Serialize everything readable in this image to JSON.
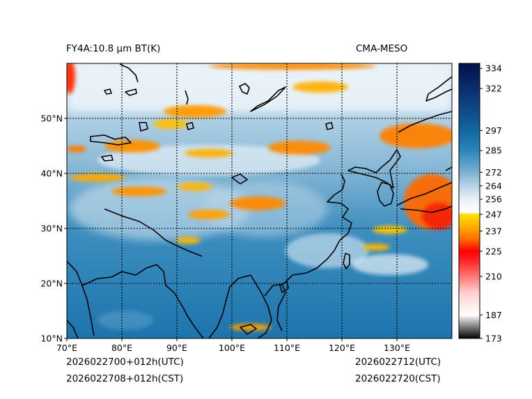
{
  "header": {
    "left_title": "FY4A:10.8 μm BT(K)",
    "right_title": "CMA-MESO"
  },
  "footer": {
    "init_utc": "2026022700+012h(UTC)",
    "init_cst": "2026022708+012h(CST)",
    "valid_utc": "2026022712(UTC)",
    "valid_cst": "2026022720(CST)"
  },
  "map": {
    "lon_range": [
      70,
      140
    ],
    "lat_range": [
      10,
      60
    ],
    "lon_ticks": [
      {
        "value": 70,
        "label": "70°E"
      },
      {
        "value": 80,
        "label": "80°E"
      },
      {
        "value": 90,
        "label": "90°E"
      },
      {
        "value": 100,
        "label": "100°E"
      },
      {
        "value": 110,
        "label": "110°E"
      },
      {
        "value": 120,
        "label": "120°E"
      },
      {
        "value": 130,
        "label": "130°E"
      }
    ],
    "lat_ticks": [
      {
        "value": 10,
        "label": "10°N"
      },
      {
        "value": 20,
        "label": "20°N"
      },
      {
        "value": 30,
        "label": "30°N"
      },
      {
        "value": 40,
        "label": "40°N"
      },
      {
        "value": 50,
        "label": "50°N"
      }
    ]
  },
  "colorbar": {
    "range": [
      173,
      337
    ],
    "ticks": [
      {
        "value": 173,
        "label": "173"
      },
      {
        "value": 187,
        "label": "187"
      },
      {
        "value": 210,
        "label": "210"
      },
      {
        "value": 225,
        "label": "225"
      },
      {
        "value": 237,
        "label": "237"
      },
      {
        "value": 247,
        "label": "247"
      },
      {
        "value": 256,
        "label": "256"
      },
      {
        "value": 264,
        "label": "264"
      },
      {
        "value": 272,
        "label": "272"
      },
      {
        "value": 285,
        "label": "285"
      },
      {
        "value": 297,
        "label": "297"
      },
      {
        "value": 322,
        "label": "322"
      },
      {
        "value": 334,
        "label": "334"
      }
    ],
    "stops": [
      {
        "value": 173,
        "color": "#000000"
      },
      {
        "value": 187,
        "color": "#ffffff"
      },
      {
        "value": 200,
        "color": "#ffd0d0"
      },
      {
        "value": 218,
        "color": "#ff3030"
      },
      {
        "value": 225,
        "color": "#ff0000"
      },
      {
        "value": 232,
        "color": "#ff6a00"
      },
      {
        "value": 240,
        "color": "#ffb000"
      },
      {
        "value": 247,
        "color": "#ffe000"
      },
      {
        "value": 248,
        "color": "#ffffff"
      },
      {
        "value": 256,
        "color": "#e8f1f7"
      },
      {
        "value": 264,
        "color": "#b7d3e6"
      },
      {
        "value": 272,
        "color": "#7cb0d0"
      },
      {
        "value": 285,
        "color": "#2a86b8"
      },
      {
        "value": 297,
        "color": "#1266a0"
      },
      {
        "value": 322,
        "color": "#0a2e6e"
      },
      {
        "value": 337,
        "color": "#00114a"
      }
    ]
  }
}
